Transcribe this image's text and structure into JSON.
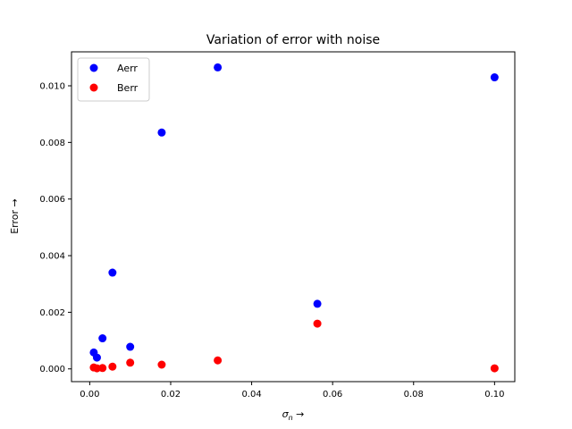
{
  "chart_data": {
    "type": "scatter",
    "title": "Variation of error with noise",
    "xlabel_base": "σ",
    "xlabel_sub": "n",
    "xlabel_arrow": " →",
    "ylabel": "Error →",
    "xlim": [
      -0.0045,
      0.105
    ],
    "ylim": [
      -0.00045,
      0.0112
    ],
    "xticks": [
      0.0,
      0.02,
      0.04,
      0.06,
      0.08,
      0.1
    ],
    "xtick_labels": [
      "0.00",
      "0.02",
      "0.04",
      "0.06",
      "0.08",
      "0.10"
    ],
    "yticks": [
      0.0,
      0.002,
      0.004,
      0.006,
      0.008,
      0.01
    ],
    "ytick_labels": [
      "0.000",
      "0.002",
      "0.004",
      "0.006",
      "0.008",
      "0.010"
    ],
    "legend_position": "top-left",
    "grid": false,
    "series": [
      {
        "name": "Aerr",
        "color": "#0000ff",
        "x": [
          0.001,
          0.00178,
          0.00316,
          0.00562,
          0.01,
          0.01778,
          0.03162,
          0.05623,
          0.1
        ],
        "y": [
          0.00058,
          0.0004,
          0.00108,
          0.0034,
          0.00078,
          0.00835,
          0.01065,
          0.0023,
          0.0103
        ]
      },
      {
        "name": "Berr",
        "color": "#ff0000",
        "x": [
          0.001,
          0.00178,
          0.00316,
          0.00562,
          0.01,
          0.01778,
          0.03162,
          0.05623,
          0.1
        ],
        "y": [
          5e-05,
          2e-05,
          3e-05,
          8e-05,
          0.00022,
          0.00015,
          0.0003,
          0.0016,
          2e-05
        ]
      }
    ]
  }
}
